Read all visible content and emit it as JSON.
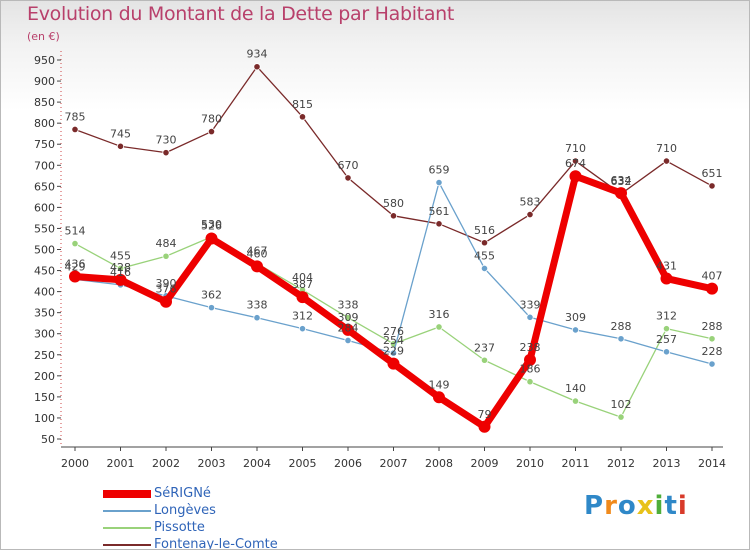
{
  "title": "Evolution du Montant de la Dette par Habitant",
  "subtitle": "(en €)",
  "logo": {
    "text": "Proxiti",
    "colors": [
      "#2f88c8",
      "#f08a1c",
      "#2f88c8",
      "#e8c21a",
      "#4fae3a",
      "#2f88c8",
      "#d83a2a"
    ]
  },
  "chart_data": {
    "type": "line",
    "title": "Evolution du Montant de la Dette par Habitant",
    "subtitle": "(en €)",
    "categories": [
      "2000",
      "2001",
      "2002",
      "2003",
      "2004",
      "2005",
      "2006",
      "2007",
      "2008",
      "2009",
      "2010",
      "2011",
      "2012",
      "2013",
      "2014"
    ],
    "ylim": [
      50,
      950
    ],
    "yticks": [
      50,
      100,
      150,
      200,
      250,
      300,
      350,
      400,
      450,
      500,
      550,
      600,
      650,
      700,
      750,
      800,
      850,
      900,
      950
    ],
    "grid": false,
    "legend_position": "bottom-left",
    "series": [
      {
        "name": "Fontenay-le-Comte",
        "color": "#7a2a2a",
        "width": 1.3,
        "values": [
          785,
          745,
          730,
          780,
          934,
          815,
          670,
          580,
          561,
          516,
          583,
          710,
          632,
          710,
          651
        ]
      },
      {
        "name": "Pissotte",
        "color": "#99d27a",
        "width": 1.3,
        "values": [
          514,
          455,
          484,
          530,
          467,
          404,
          338,
          276,
          316,
          237,
          186,
          140,
          102,
          312,
          288
        ]
      },
      {
        "name": "Longèves",
        "color": "#6aa1cc",
        "width": 1.3,
        "values": [
          429,
          416,
          390,
          362,
          338,
          312,
          284,
          254,
          659,
          455,
          339,
          309,
          288,
          257,
          228
        ]
      },
      {
        "name": "SéRIGNé",
        "color": "#ee0000",
        "width": 7,
        "values": [
          436,
          428,
          376,
          526,
          460,
          387,
          309,
          229,
          149,
          79,
          238,
          674,
          634,
          431,
          407
        ]
      }
    ],
    "legend": [
      "SéRIGNé",
      "Longèves",
      "Pissotte",
      "Fontenay-le-Comte"
    ]
  }
}
